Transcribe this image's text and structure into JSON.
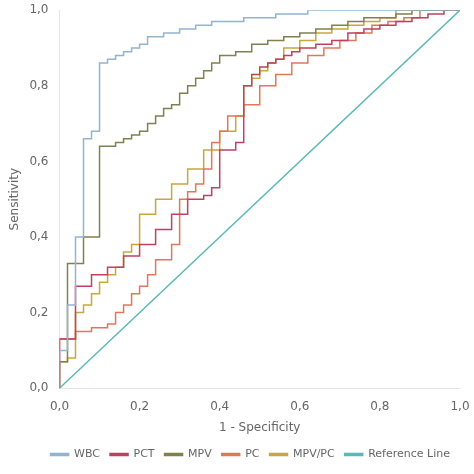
{
  "chart_data": {
    "type": "line",
    "xlabel": "1 - Specificity",
    "ylabel": "Sensitivity",
    "xlim": [
      0.0,
      1.0
    ],
    "ylim": [
      0.0,
      1.0
    ],
    "xticks": [
      {
        "value": 0.0,
        "label": "0,0"
      },
      {
        "value": 0.2,
        "label": "0,2"
      },
      {
        "value": 0.4,
        "label": "0,4"
      },
      {
        "value": 0.6,
        "label": "0,6"
      },
      {
        "value": 0.8,
        "label": "0,8"
      },
      {
        "value": 1.0,
        "label": "1,0"
      }
    ],
    "yticks": [
      {
        "value": 0.0,
        "label": "0,0"
      },
      {
        "value": 0.2,
        "label": "0,2"
      },
      {
        "value": 0.4,
        "label": "0,4"
      },
      {
        "value": 0.6,
        "label": "0,6"
      },
      {
        "value": 0.8,
        "label": "0,8"
      },
      {
        "value": 1.0,
        "label": "1,0"
      }
    ],
    "grid": false,
    "legend": "lower right",
    "series": [
      {
        "name": "WBC",
        "color": "#92b4d0",
        "x": [
          0.0,
          0.0,
          0.02,
          0.02,
          0.04,
          0.04,
          0.06,
          0.06,
          0.08,
          0.08,
          0.1,
          0.1,
          0.12,
          0.12,
          0.14,
          0.14,
          0.16,
          0.16,
          0.18,
          0.18,
          0.2,
          0.2,
          0.22,
          0.22,
          0.26,
          0.26,
          0.3,
          0.3,
          0.34,
          0.34,
          0.38,
          0.38,
          0.42,
          0.42,
          0.46,
          0.46,
          0.5,
          0.5,
          0.54,
          0.54,
          0.58,
          0.58,
          0.62,
          0.62,
          0.66,
          0.66,
          0.7,
          0.7,
          0.74,
          0.74,
          0.78,
          0.78,
          0.82,
          0.82,
          0.86,
          0.86,
          0.9,
          0.9,
          0.94,
          0.94,
          1.0
        ],
        "values": [
          0.0,
          0.1,
          0.1,
          0.22,
          0.22,
          0.4,
          0.4,
          0.66,
          0.66,
          0.68,
          0.68,
          0.86,
          0.86,
          0.87,
          0.87,
          0.88,
          0.88,
          0.89,
          0.89,
          0.9,
          0.9,
          0.91,
          0.91,
          0.93,
          0.93,
          0.94,
          0.94,
          0.95,
          0.95,
          0.96,
          0.96,
          0.97,
          0.97,
          0.97,
          0.97,
          0.98,
          0.98,
          0.98,
          0.98,
          0.99,
          0.99,
          0.99,
          0.99,
          1.0,
          1.0,
          1.0,
          1.0,
          1.0,
          1.0,
          1.0,
          1.0,
          1.0,
          1.0,
          1.0,
          1.0,
          1.0,
          1.0,
          1.0,
          1.0,
          1.0,
          1.0
        ]
      },
      {
        "name": "PCT",
        "color": "#c04060",
        "x": [
          0.0,
          0.0,
          0.04,
          0.04,
          0.08,
          0.08,
          0.12,
          0.12,
          0.16,
          0.16,
          0.2,
          0.2,
          0.24,
          0.24,
          0.28,
          0.28,
          0.32,
          0.32,
          0.36,
          0.36,
          0.38,
          0.38,
          0.4,
          0.4,
          0.44,
          0.44,
          0.46,
          0.46,
          0.48,
          0.48,
          0.5,
          0.5,
          0.52,
          0.52,
          0.54,
          0.54,
          0.56,
          0.56,
          0.58,
          0.58,
          0.6,
          0.6,
          0.64,
          0.64,
          0.68,
          0.68,
          0.72,
          0.72,
          0.76,
          0.76,
          0.8,
          0.8,
          0.84,
          0.84,
          0.88,
          0.88,
          0.92,
          0.92,
          0.96,
          0.96,
          1.0
        ],
        "values": [
          0.0,
          0.13,
          0.13,
          0.27,
          0.27,
          0.3,
          0.3,
          0.32,
          0.32,
          0.35,
          0.35,
          0.38,
          0.38,
          0.42,
          0.42,
          0.46,
          0.46,
          0.5,
          0.5,
          0.51,
          0.51,
          0.53,
          0.53,
          0.63,
          0.63,
          0.65,
          0.65,
          0.8,
          0.8,
          0.83,
          0.83,
          0.85,
          0.85,
          0.86,
          0.86,
          0.87,
          0.87,
          0.88,
          0.88,
          0.89,
          0.89,
          0.9,
          0.9,
          0.91,
          0.91,
          0.92,
          0.92,
          0.94,
          0.94,
          0.95,
          0.95,
          0.96,
          0.96,
          0.97,
          0.97,
          0.98,
          0.98,
          0.99,
          0.99,
          1.0,
          1.0
        ]
      },
      {
        "name": "MPV",
        "color": "#808050",
        "x": [
          0.0,
          0.0,
          0.02,
          0.02,
          0.06,
          0.06,
          0.1,
          0.1,
          0.14,
          0.14,
          0.16,
          0.16,
          0.18,
          0.18,
          0.2,
          0.2,
          0.22,
          0.22,
          0.24,
          0.24,
          0.26,
          0.26,
          0.28,
          0.28,
          0.3,
          0.3,
          0.32,
          0.32,
          0.34,
          0.34,
          0.36,
          0.36,
          0.38,
          0.38,
          0.4,
          0.4,
          0.44,
          0.44,
          0.48,
          0.48,
          0.52,
          0.52,
          0.56,
          0.56,
          0.6,
          0.6,
          0.64,
          0.64,
          0.68,
          0.68,
          0.72,
          0.72,
          0.76,
          0.76,
          0.8,
          0.8,
          0.84,
          0.84,
          0.88,
          0.88,
          0.92,
          0.92,
          0.96,
          0.96,
          1.0
        ],
        "values": [
          0.0,
          0.07,
          0.07,
          0.33,
          0.33,
          0.4,
          0.4,
          0.64,
          0.64,
          0.65,
          0.65,
          0.66,
          0.66,
          0.67,
          0.67,
          0.68,
          0.68,
          0.7,
          0.7,
          0.72,
          0.72,
          0.74,
          0.74,
          0.75,
          0.75,
          0.78,
          0.78,
          0.8,
          0.8,
          0.82,
          0.82,
          0.84,
          0.84,
          0.86,
          0.86,
          0.88,
          0.88,
          0.89,
          0.89,
          0.91,
          0.91,
          0.92,
          0.92,
          0.93,
          0.93,
          0.94,
          0.94,
          0.95,
          0.95,
          0.96,
          0.96,
          0.97,
          0.97,
          0.98,
          0.98,
          0.98,
          0.98,
          0.99,
          0.99,
          1.0,
          1.0,
          1.0,
          1.0,
          1.0,
          1.0
        ]
      },
      {
        "name": "PC",
        "color": "#e07858",
        "x": [
          0.0,
          0.0,
          0.04,
          0.04,
          0.08,
          0.08,
          0.12,
          0.12,
          0.14,
          0.14,
          0.16,
          0.16,
          0.18,
          0.18,
          0.2,
          0.2,
          0.22,
          0.22,
          0.24,
          0.24,
          0.28,
          0.28,
          0.3,
          0.3,
          0.32,
          0.32,
          0.34,
          0.34,
          0.36,
          0.36,
          0.38,
          0.38,
          0.4,
          0.4,
          0.42,
          0.42,
          0.46,
          0.46,
          0.5,
          0.5,
          0.54,
          0.54,
          0.58,
          0.58,
          0.62,
          0.62,
          0.66,
          0.66,
          0.7,
          0.7,
          0.74,
          0.74,
          0.78,
          0.78,
          0.82,
          0.82,
          0.86,
          0.86,
          0.9,
          0.9,
          0.94,
          0.94,
          1.0
        ],
        "values": [
          0.0,
          0.13,
          0.13,
          0.15,
          0.15,
          0.16,
          0.16,
          0.17,
          0.17,
          0.2,
          0.2,
          0.22,
          0.22,
          0.25,
          0.25,
          0.27,
          0.27,
          0.3,
          0.3,
          0.34,
          0.34,
          0.38,
          0.38,
          0.5,
          0.5,
          0.52,
          0.52,
          0.54,
          0.54,
          0.58,
          0.58,
          0.65,
          0.65,
          0.68,
          0.68,
          0.72,
          0.72,
          0.75,
          0.75,
          0.8,
          0.8,
          0.83,
          0.83,
          0.86,
          0.86,
          0.88,
          0.88,
          0.9,
          0.9,
          0.92,
          0.92,
          0.94,
          0.94,
          0.96,
          0.96,
          0.97,
          0.97,
          0.98,
          0.98,
          1.0,
          1.0,
          1.0,
          1.0
        ]
      },
      {
        "name": "MPV/PC",
        "color": "#c8a83a",
        "x": [
          0.0,
          0.0,
          0.02,
          0.02,
          0.04,
          0.04,
          0.06,
          0.06,
          0.08,
          0.08,
          0.1,
          0.1,
          0.12,
          0.12,
          0.14,
          0.14,
          0.16,
          0.16,
          0.18,
          0.18,
          0.2,
          0.2,
          0.24,
          0.24,
          0.28,
          0.28,
          0.32,
          0.32,
          0.36,
          0.36,
          0.4,
          0.4,
          0.44,
          0.44,
          0.46,
          0.46,
          0.48,
          0.48,
          0.5,
          0.5,
          0.52,
          0.52,
          0.54,
          0.54,
          0.56,
          0.56,
          0.6,
          0.6,
          0.64,
          0.64,
          0.68,
          0.68,
          0.72,
          0.72,
          0.76,
          0.76,
          0.8,
          0.8,
          0.84,
          0.84,
          0.88,
          0.88,
          0.92,
          0.92,
          0.96,
          0.96,
          1.0
        ],
        "values": [
          0.0,
          0.07,
          0.07,
          0.08,
          0.08,
          0.2,
          0.2,
          0.22,
          0.22,
          0.25,
          0.25,
          0.28,
          0.28,
          0.3,
          0.3,
          0.32,
          0.32,
          0.36,
          0.36,
          0.38,
          0.38,
          0.46,
          0.46,
          0.5,
          0.5,
          0.54,
          0.54,
          0.58,
          0.58,
          0.63,
          0.63,
          0.68,
          0.68,
          0.72,
          0.72,
          0.8,
          0.8,
          0.82,
          0.82,
          0.84,
          0.84,
          0.86,
          0.86,
          0.87,
          0.87,
          0.9,
          0.9,
          0.92,
          0.92,
          0.94,
          0.94,
          0.95,
          0.95,
          0.96,
          0.96,
          0.97,
          0.97,
          0.98,
          0.98,
          1.0,
          1.0,
          1.0,
          1.0,
          1.0,
          1.0,
          1.0,
          1.0
        ]
      },
      {
        "name": "Reference Line",
        "color": "#5ab8b8",
        "x": [
          0.0,
          1.0
        ],
        "values": [
          0.0,
          1.0
        ]
      }
    ]
  }
}
